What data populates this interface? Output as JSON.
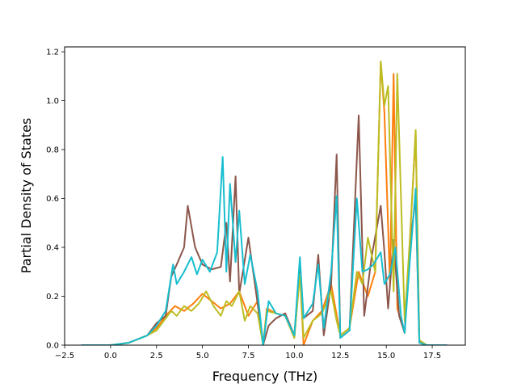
{
  "chart_data": {
    "type": "line",
    "title": "",
    "xlabel": "Frequency (THz)",
    "ylabel": "Partial Density of States",
    "xlim": [
      -2.5,
      19.3
    ],
    "ylim": [
      0,
      1.22
    ],
    "xticks": [
      -2.5,
      0.0,
      2.5,
      5.0,
      7.5,
      10.0,
      12.5,
      15.0,
      17.5
    ],
    "xtick_labels": [
      "−2.5",
      "0.0",
      "2.5",
      "5.0",
      "7.5",
      "10.0",
      "12.5",
      "15.0",
      "17.5"
    ],
    "yticks": [
      0.0,
      0.2,
      0.4,
      0.6,
      0.8,
      1.0,
      1.2
    ],
    "ytick_labels": [
      "0.0",
      "0.2",
      "0.4",
      "0.6",
      "0.8",
      "1.0",
      "1.2"
    ],
    "grid": false,
    "series": [
      {
        "color": "#ff7f0e",
        "x": [
          -1.6,
          0.0,
          1.0,
          2.0,
          2.5,
          3.0,
          3.5,
          4.0,
          4.5,
          5.0,
          5.5,
          6.0,
          6.5,
          7.0,
          7.5,
          8.0,
          8.3,
          8.5,
          9.0,
          9.5,
          10.0,
          10.3,
          10.5,
          11.0,
          11.5,
          12.0,
          12.5,
          13.0,
          13.5,
          14.0,
          14.4,
          14.7,
          14.9,
          15.2,
          15.4,
          15.6,
          16.0,
          16.3,
          16.6,
          16.8,
          17.2,
          18.3
        ],
        "y": [
          0.0,
          0.0,
          0.01,
          0.04,
          0.07,
          0.12,
          0.16,
          0.14,
          0.17,
          0.21,
          0.18,
          0.15,
          0.17,
          0.22,
          0.12,
          0.18,
          0.0,
          0.15,
          0.13,
          0.12,
          0.03,
          0.3,
          0.0,
          0.1,
          0.14,
          0.25,
          0.04,
          0.07,
          0.3,
          0.2,
          0.3,
          1.16,
          0.95,
          0.25,
          1.11,
          0.15,
          0.05,
          0.45,
          0.87,
          0.02,
          0.0,
          0.0
        ]
      },
      {
        "color": "#8c564b",
        "x": [
          -1.6,
          0.0,
          1.0,
          2.0,
          2.5,
          3.0,
          3.3,
          3.6,
          4.0,
          4.2,
          4.6,
          5.0,
          5.5,
          6.0,
          6.3,
          6.5,
          6.8,
          7.0,
          7.5,
          8.0,
          8.3,
          8.6,
          9.0,
          9.5,
          10.0,
          10.3,
          10.5,
          11.0,
          11.3,
          11.6,
          12.0,
          12.3,
          12.5,
          13.0,
          13.5,
          13.8,
          14.2,
          14.7,
          14.9,
          15.1,
          15.4,
          15.7,
          16.0,
          16.3,
          16.6,
          16.8,
          17.2,
          18.3
        ],
        "y": [
          0.0,
          0.0,
          0.01,
          0.04,
          0.09,
          0.12,
          0.28,
          0.33,
          0.4,
          0.57,
          0.4,
          0.33,
          0.31,
          0.32,
          0.5,
          0.26,
          0.69,
          0.21,
          0.44,
          0.17,
          0.0,
          0.08,
          0.11,
          0.13,
          0.04,
          0.34,
          0.11,
          0.14,
          0.37,
          0.04,
          0.25,
          0.78,
          0.03,
          0.06,
          0.94,
          0.12,
          0.36,
          0.57,
          0.38,
          0.15,
          0.43,
          0.12,
          0.05,
          0.42,
          0.6,
          0.01,
          0.0,
          0.0
        ]
      },
      {
        "color": "#bcbd22",
        "x": [
          -1.6,
          0.0,
          1.0,
          2.0,
          2.5,
          3.0,
          3.3,
          3.6,
          4.0,
          4.4,
          4.8,
          5.2,
          5.6,
          6.0,
          6.3,
          6.6,
          7.0,
          7.3,
          7.6,
          8.0,
          8.3,
          8.5,
          9.0,
          9.5,
          10.0,
          10.3,
          10.5,
          11.0,
          11.5,
          12.0,
          12.3,
          12.5,
          13.0,
          13.4,
          13.7,
          14.0,
          14.4,
          14.7,
          14.9,
          15.1,
          15.4,
          15.6,
          16.0,
          16.3,
          16.6,
          16.8,
          17.2,
          18.3
        ],
        "y": [
          0.0,
          0.0,
          0.01,
          0.04,
          0.06,
          0.11,
          0.14,
          0.12,
          0.16,
          0.14,
          0.17,
          0.22,
          0.16,
          0.12,
          0.18,
          0.16,
          0.22,
          0.1,
          0.16,
          0.13,
          0.0,
          0.14,
          0.13,
          0.12,
          0.03,
          0.29,
          0.03,
          0.1,
          0.13,
          0.22,
          0.1,
          0.04,
          0.07,
          0.3,
          0.25,
          0.44,
          0.3,
          1.16,
          0.98,
          1.06,
          0.22,
          1.11,
          0.1,
          0.45,
          0.88,
          0.02,
          0.0,
          0.0
        ]
      },
      {
        "color": "#17becf",
        "x": [
          -1.6,
          0.0,
          1.0,
          2.0,
          2.5,
          3.0,
          3.4,
          3.6,
          4.0,
          4.4,
          4.7,
          5.0,
          5.4,
          5.8,
          6.1,
          6.3,
          6.5,
          6.8,
          7.0,
          7.3,
          7.6,
          8.0,
          8.3,
          8.6,
          9.0,
          9.5,
          10.0,
          10.3,
          10.5,
          11.0,
          11.3,
          11.6,
          12.0,
          12.3,
          12.5,
          13.0,
          13.4,
          13.7,
          14.0,
          14.3,
          14.7,
          14.9,
          15.2,
          15.5,
          15.8,
          16.0,
          16.3,
          16.6,
          16.8,
          17.2,
          18.3
        ],
        "y": [
          0.0,
          0.0,
          0.01,
          0.04,
          0.08,
          0.14,
          0.33,
          0.25,
          0.3,
          0.36,
          0.29,
          0.35,
          0.3,
          0.38,
          0.77,
          0.3,
          0.66,
          0.34,
          0.55,
          0.25,
          0.37,
          0.22,
          0.0,
          0.18,
          0.13,
          0.12,
          0.04,
          0.36,
          0.11,
          0.17,
          0.33,
          0.07,
          0.3,
          0.61,
          0.03,
          0.06,
          0.6,
          0.3,
          0.31,
          0.33,
          0.38,
          0.25,
          0.29,
          0.4,
          0.12,
          0.05,
          0.36,
          0.64,
          0.01,
          0.0,
          0.0
        ]
      }
    ]
  }
}
